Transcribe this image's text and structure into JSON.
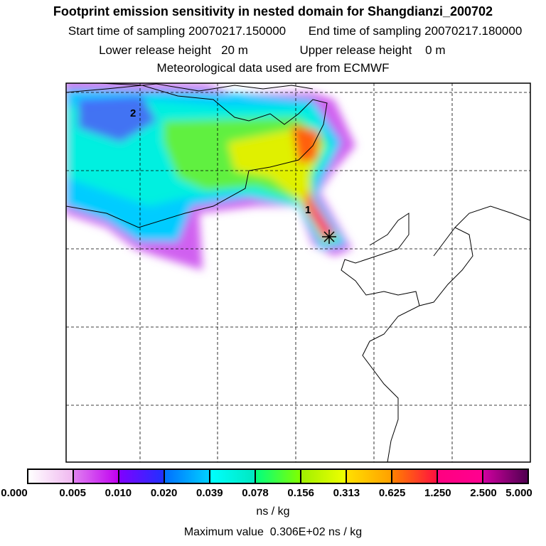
{
  "header": {
    "title": "Footprint emission sensitivity in nested domain for Shangdianzi_200702",
    "start_sampling": "Start time of sampling 20070217.150000",
    "end_sampling": "End time of sampling 20070217.180000",
    "lower_release": "Lower release height   20 m",
    "upper_release": "Upper release height    0 m",
    "met_data": "Meteorological data used are from ECMWF"
  },
  "map": {
    "labels": [
      "1",
      "2"
    ],
    "station_marker": "receptor-star-icon"
  },
  "colorbar": {
    "ticks": [
      "0.000",
      "0.005",
      "0.010",
      "0.020",
      "0.039",
      "0.078",
      "0.156",
      "0.313",
      "0.625",
      "1.250",
      "2.500",
      "5.000"
    ],
    "segments": [
      [
        "#ffffff",
        "#f0b8f0"
      ],
      [
        "#e080f0",
        "#c000f0"
      ],
      [
        "#8000ff",
        "#2030ff"
      ],
      [
        "#0070ff",
        "#00d0ff"
      ],
      [
        "#00ffff",
        "#00e8c0"
      ],
      [
        "#00ff80",
        "#80ff00"
      ],
      [
        "#a0f000",
        "#f0ff00"
      ],
      [
        "#ffe000",
        "#ffa000"
      ],
      [
        "#ff8000",
        "#ff1040"
      ],
      [
        "#ff0080",
        "#ff0090"
      ],
      [
        "#d000a0",
        "#500050"
      ]
    ],
    "unit": "ns / kg",
    "maximum": "Maximum value  0.306E+02 ns / kg"
  },
  "chart_data": {
    "type": "heatmap",
    "title": "Footprint emission sensitivity in nested domain for Shangdianzi_200702",
    "colorbar_levels": [
      0.0,
      0.005,
      0.01,
      0.02,
      0.039,
      0.078,
      0.156,
      0.313,
      0.625,
      1.25,
      2.5,
      5.0
    ],
    "units": "ns / kg",
    "max_value": 30.6,
    "grid": true
  }
}
